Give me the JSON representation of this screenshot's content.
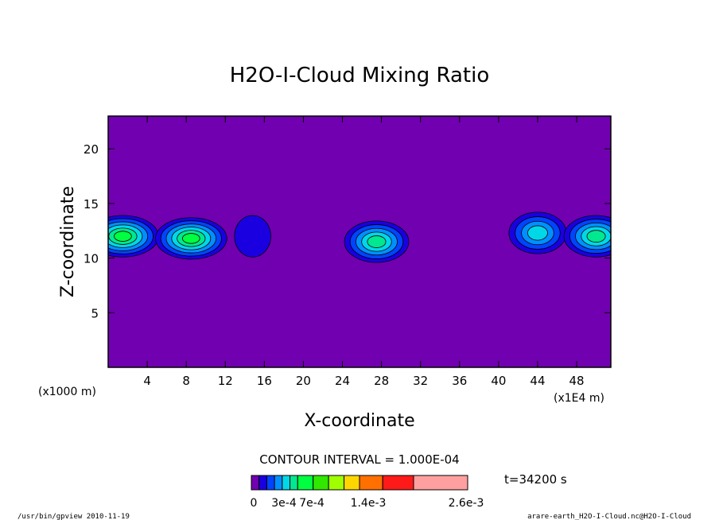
{
  "chart_data": {
    "type": "heatmap",
    "title": "H2O-I-Cloud Mixing Ratio",
    "xlabel": "X-coordinate",
    "ylabel": "Z-coordinate",
    "x_unit_left": "(x1000 m)",
    "x_unit_right": "(x1E4 m)",
    "xlim": [
      0,
      51.5
    ],
    "ylim": [
      0,
      23
    ],
    "x_ticks": [
      4,
      8,
      12,
      16,
      20,
      24,
      28,
      32,
      36,
      40,
      44,
      48
    ],
    "y_ticks": [
      5,
      10,
      15,
      20
    ],
    "background_value": 0,
    "clouds": [
      {
        "x": 1.5,
        "z": 12.0,
        "peak_level": 6
      },
      {
        "x": 8.5,
        "z": 11.8,
        "peak_level": 6
      },
      {
        "x": 14.8,
        "z": 12.0,
        "peak_level": 1
      },
      {
        "x": 27.5,
        "z": 11.5,
        "peak_level": 5
      },
      {
        "x": 44.0,
        "z": 12.3,
        "peak_level": 4
      },
      {
        "x": 50.0,
        "z": 12.0,
        "peak_level": 5
      }
    ],
    "contour_interval_label": "CONTOUR INTERVAL = 1.000E-04",
    "time_label": "t=34200 s",
    "colorbar": {
      "colors": [
        "#7000b0",
        "#1a00e0",
        "#0044ff",
        "#0090ff",
        "#00d8e8",
        "#00e890",
        "#00ff40",
        "#30e800",
        "#a0ff00",
        "#ffd700",
        "#ff7000",
        "#ff1a1a",
        "#ffa0a0"
      ],
      "labels": [
        "0",
        "3e-4",
        "7e-4",
        "1.4e-3",
        "2.6e-3"
      ]
    }
  },
  "footer": {
    "left": "/usr/bin/gpview  2010-11-19",
    "right": "arare-earth_H2O-I-Cloud.nc@H2O-I-Cloud"
  }
}
